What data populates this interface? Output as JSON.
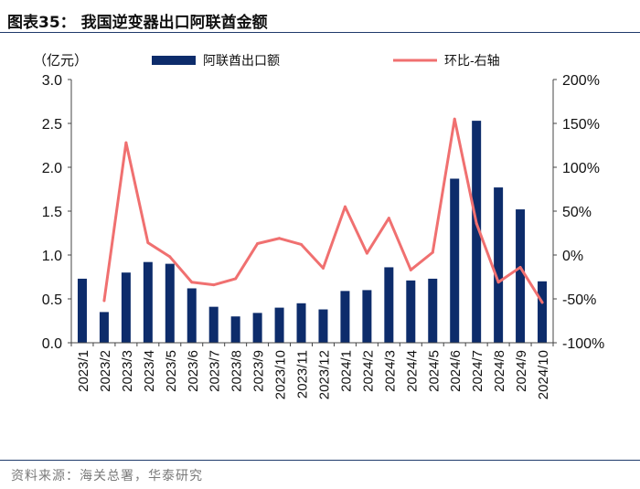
{
  "figure": {
    "title": "图表35： 我国逆变器出口阿联酋金额",
    "source": "资料来源：海关总署，华泰研究"
  },
  "colors": {
    "bar": "#0d2c6b",
    "line": "#f07070",
    "axis": "#444444",
    "rule": "#1f3a6b",
    "text": "#111111"
  },
  "chart_data": {
    "type": "bar+line",
    "unit_label": "（亿元）",
    "categories": [
      "2023/1",
      "2023/2",
      "2023/3",
      "2023/4",
      "2023/5",
      "2023/6",
      "2023/7",
      "2023/8",
      "2023/9",
      "2023/10",
      "2023/11",
      "2023/12",
      "2024/1",
      "2024/2",
      "2024/3",
      "2024/4",
      "2024/5",
      "2024/6",
      "2024/7",
      "2024/8",
      "2024/9",
      "2024/10"
    ],
    "series": [
      {
        "name": "阿联酋出口额",
        "type": "bar",
        "axis": "left",
        "values": [
          0.73,
          0.35,
          0.8,
          0.92,
          0.9,
          0.62,
          0.41,
          0.3,
          0.34,
          0.4,
          0.45,
          0.38,
          0.59,
          0.6,
          0.86,
          0.71,
          0.73,
          1.87,
          2.53,
          1.77,
          1.52,
          0.7
        ]
      },
      {
        "name": "环比-右轴",
        "type": "line",
        "axis": "right",
        "values": [
          null,
          -52,
          128,
          14,
          -2,
          -31,
          -34,
          -27,
          13,
          19,
          12,
          -15,
          55,
          2,
          42,
          -17,
          3,
          155,
          36,
          -31,
          -14,
          -54
        ]
      }
    ],
    "left_axis": {
      "min": 0,
      "max": 3.0,
      "ticks": [
        "0.0",
        "0.5",
        "1.0",
        "1.5",
        "2.0",
        "2.5",
        "3.0"
      ]
    },
    "right_axis": {
      "min": -100,
      "max": 200,
      "ticks": [
        "-100%",
        "-50%",
        "0%",
        "50%",
        "100%",
        "150%",
        "200%"
      ]
    },
    "legend_position": "top"
  }
}
